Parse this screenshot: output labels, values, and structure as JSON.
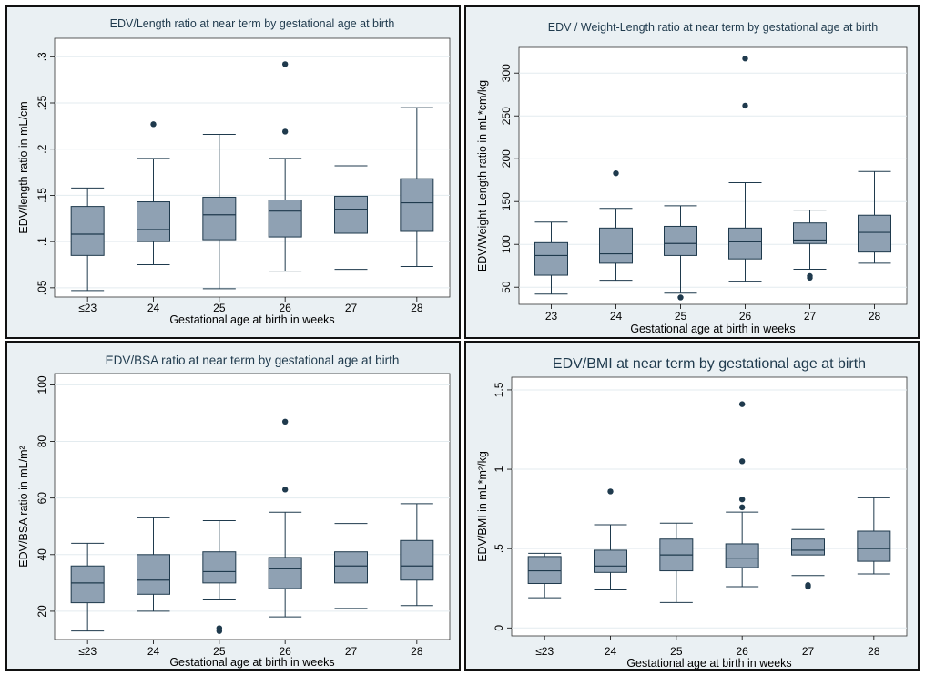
{
  "chart_data": [
    {
      "type": "box",
      "title": "EDV/Length ratio at near term by gestational age at birth",
      "xlabel": "Gestational age at birth in weeks",
      "ylabel": "EDV/length ratio in mL/cm",
      "categories": [
        "≤23",
        "24",
        "25",
        "26",
        "27",
        "28"
      ],
      "yticks": [
        ".05",
        ".1",
        ".15",
        ".2",
        ".25",
        ".3"
      ],
      "ytick_values": [
        0.05,
        0.1,
        0.15,
        0.2,
        0.25,
        0.3
      ],
      "ylim": [
        0.04,
        0.32
      ],
      "boxes": [
        {
          "min": 0.047,
          "q1": 0.085,
          "median": 0.108,
          "q3": 0.138,
          "max": 0.158,
          "outliers": []
        },
        {
          "min": 0.075,
          "q1": 0.1,
          "median": 0.113,
          "q3": 0.143,
          "max": 0.19,
          "outliers": [
            0.227
          ]
        },
        {
          "min": 0.049,
          "q1": 0.102,
          "median": 0.129,
          "q3": 0.148,
          "max": 0.216,
          "outliers": []
        },
        {
          "min": 0.068,
          "q1": 0.105,
          "median": 0.133,
          "q3": 0.145,
          "max": 0.19,
          "outliers": [
            0.219,
            0.292
          ]
        },
        {
          "min": 0.07,
          "q1": 0.109,
          "median": 0.135,
          "q3": 0.149,
          "max": 0.182,
          "outliers": []
        },
        {
          "min": 0.073,
          "q1": 0.111,
          "median": 0.142,
          "q3": 0.168,
          "max": 0.245,
          "outliers": []
        }
      ]
    },
    {
      "type": "box",
      "title": "EDV / Weight-Length ratio at near term by gestational age at birth",
      "xlabel": "Gestational age at birth in weeks",
      "ylabel": "EDV/Weight-Length ratio in mL*cm/kg",
      "categories": [
        "23",
        "24",
        "25",
        "26",
        "27",
        "28"
      ],
      "yticks": [
        "50",
        "100",
        "150",
        "200",
        "250",
        "300"
      ],
      "ytick_values": [
        50,
        100,
        150,
        200,
        250,
        300
      ],
      "ylim": [
        30,
        330
      ],
      "boxes": [
        {
          "min": 42,
          "q1": 64,
          "median": 87,
          "q3": 102,
          "max": 126,
          "outliers": []
        },
        {
          "min": 58,
          "q1": 78,
          "median": 89,
          "q3": 119,
          "max": 142,
          "outliers": [
            183
          ]
        },
        {
          "min": 43,
          "q1": 87,
          "median": 101,
          "q3": 121,
          "max": 145,
          "outliers": [
            38
          ]
        },
        {
          "min": 57,
          "q1": 83,
          "median": 103,
          "q3": 119,
          "max": 172,
          "outliers": [
            262,
            317
          ]
        },
        {
          "min": 71,
          "q1": 101,
          "median": 105,
          "q3": 125,
          "max": 140,
          "outliers": [
            61,
            63
          ]
        },
        {
          "min": 78,
          "q1": 91,
          "median": 114,
          "q3": 134,
          "max": 185,
          "outliers": []
        }
      ]
    },
    {
      "type": "box",
      "title": "EDV/BSA ratio at near term by gestational age at birth",
      "xlabel": "Gestational age at birth in weeks",
      "ylabel": "EDV/BSA ratio in mL/m²",
      "categories": [
        "≤23",
        "24",
        "25",
        "26",
        "27",
        "28"
      ],
      "yticks": [
        "20",
        "40",
        "60",
        "80",
        "100"
      ],
      "ytick_values": [
        20,
        40,
        60,
        80,
        100
      ],
      "ylim": [
        10,
        104
      ],
      "boxes": [
        {
          "min": 13,
          "q1": 23,
          "median": 30,
          "q3": 36,
          "max": 44,
          "outliers": []
        },
        {
          "min": 20,
          "q1": 26,
          "median": 31,
          "q3": 40,
          "max": 53,
          "outliers": []
        },
        {
          "min": 24,
          "q1": 30,
          "median": 34,
          "q3": 41,
          "max": 52,
          "outliers": [
            13,
            14
          ]
        },
        {
          "min": 18,
          "q1": 28,
          "median": 35,
          "q3": 39,
          "max": 55,
          "outliers": [
            63,
            87
          ]
        },
        {
          "min": 21,
          "q1": 30,
          "median": 36,
          "q3": 41,
          "max": 51,
          "outliers": []
        },
        {
          "min": 22,
          "q1": 31,
          "median": 36,
          "q3": 45,
          "max": 58,
          "outliers": []
        }
      ]
    },
    {
      "type": "box",
      "title": "EDV/BMI at near term by gestational age at birth",
      "xlabel": "Gestational age at birth in weeks",
      "ylabel": "EDV/BMI in mL*m²/kg",
      "categories": [
        "≤23",
        "24",
        "25",
        "26",
        "27",
        "28"
      ],
      "yticks": [
        "0",
        ".5",
        "1",
        "1.5"
      ],
      "ytick_values": [
        0,
        0.5,
        1,
        1.5
      ],
      "ylim": [
        -0.05,
        1.58
      ],
      "boxes": [
        {
          "min": 0.19,
          "q1": 0.28,
          "median": 0.36,
          "q3": 0.45,
          "max": 0.47,
          "outliers": []
        },
        {
          "min": 0.24,
          "q1": 0.35,
          "median": 0.39,
          "q3": 0.49,
          "max": 0.65,
          "outliers": [
            0.86
          ]
        },
        {
          "min": 0.16,
          "q1": 0.36,
          "median": 0.46,
          "q3": 0.56,
          "max": 0.66,
          "outliers": []
        },
        {
          "min": 0.26,
          "q1": 0.38,
          "median": 0.44,
          "q3": 0.53,
          "max": 0.73,
          "outliers": [
            0.76,
            0.81,
            1.05,
            1.41
          ]
        },
        {
          "min": 0.33,
          "q1": 0.46,
          "median": 0.49,
          "q3": 0.56,
          "max": 0.62,
          "outliers": [
            0.26,
            0.27
          ]
        },
        {
          "min": 0.34,
          "q1": 0.42,
          "median": 0.5,
          "q3": 0.61,
          "max": 0.82,
          "outliers": []
        }
      ]
    }
  ],
  "colors": {
    "panel_bg": "#eaf0f3",
    "plot_bg": "#ffffff",
    "box_fill": "#8fa1b3",
    "box_stroke": "#1f3a4d",
    "outlier": "#1f3a4d",
    "grid": "#e3ebef"
  }
}
